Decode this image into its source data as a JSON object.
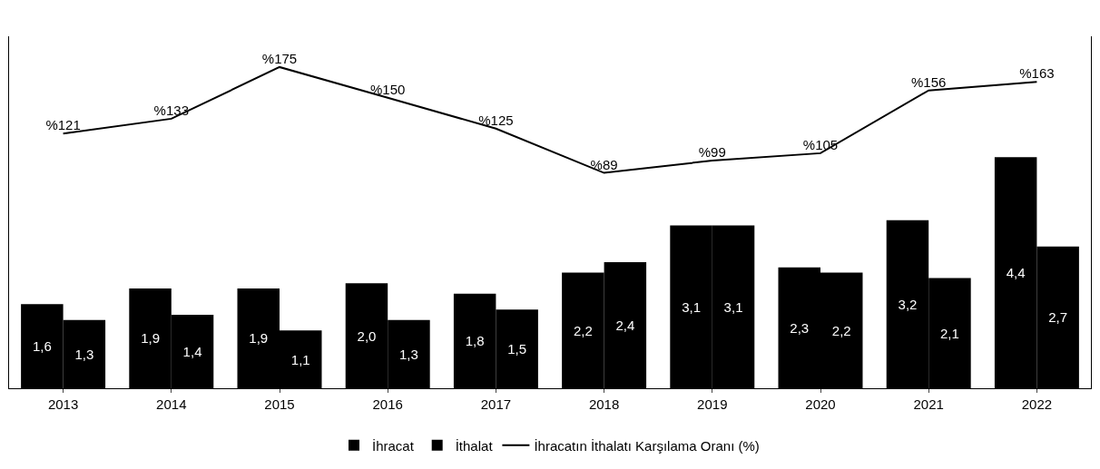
{
  "chart_data": {
    "type": "bar",
    "categories": [
      "2013",
      "2014",
      "2015",
      "2016",
      "2017",
      "2018",
      "2019",
      "2020",
      "2021",
      "2022"
    ],
    "series": [
      {
        "name": "İhracat",
        "color": "#000000",
        "values": [
          1.6,
          1.9,
          1.9,
          2.0,
          1.8,
          2.2,
          3.1,
          2.3,
          3.2,
          4.4
        ],
        "value_labels": [
          "1,6",
          "1,9",
          "1,9",
          "2,0",
          "1,8",
          "2,2",
          "3,1",
          "2,3",
          "3,2",
          "4,4"
        ]
      },
      {
        "name": "İthalat",
        "color": "#000000",
        "values": [
          1.3,
          1.4,
          1.1,
          1.3,
          1.5,
          2.4,
          3.1,
          2.2,
          2.1,
          2.7
        ],
        "value_labels": [
          "1,3",
          "1,4",
          "1,1",
          "1,3",
          "1,5",
          "2,4",
          "3,1",
          "2,2",
          "2,1",
          "2,7"
        ]
      },
      {
        "name": "İhracatın İthalatı Karşılama Oranı (%)",
        "type": "line",
        "axis": "y2",
        "color": "#000000",
        "values": [
          121,
          133,
          175,
          150,
          125,
          89,
          99,
          105,
          156,
          163
        ],
        "value_labels": [
          "%121",
          "%133",
          "%175",
          "%150",
          "%125",
          "%89",
          "%99",
          "%105",
          "%156",
          "%163"
        ]
      }
    ],
    "ylim": [
      0,
      6.7
    ],
    "y2lim": [
      -86,
      200
    ],
    "tick_labels": "x",
    "grid": false,
    "legend": "bottom",
    "marker": "none",
    "line_style": "solid"
  }
}
